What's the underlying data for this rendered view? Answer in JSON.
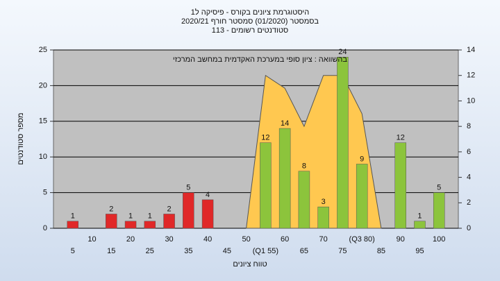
{
  "chart_data": {
    "type": "bar",
    "title": [
      "היסטוגרמת ציונים בקורס - פיסיקה ל1",
      "בסמסטר (01/2020) סמסטר חורף 2020/21",
      "סטודנטים רשומים - 113"
    ],
    "annotation": "בהשוואה : ציון סופי במערכת האקדמית במחשב המרכזי",
    "x_label": "טווח ציונים",
    "y_label": "מספר סטודנטים",
    "categories": [
      "5",
      "10",
      "15",
      "20",
      "25",
      "30",
      "35",
      "40",
      "45",
      "50",
      "(Q1 55)",
      "60",
      "65",
      "70",
      "75",
      "(Q3 80)",
      "85",
      "90",
      "95",
      "100"
    ],
    "values": [
      1,
      null,
      2,
      1,
      1,
      2,
      5,
      4,
      null,
      null,
      12,
      14,
      8,
      3,
      24,
      9,
      null,
      12,
      1,
      5
    ],
    "bar_colors": [
      "#e02828",
      "#e02828",
      "#e02828",
      "#e02828",
      "#e02828",
      "#e02828",
      "#e02828",
      "#e02828",
      "#e02828",
      "#e02828",
      "#8cc43c",
      "#8cc43c",
      "#8cc43c",
      "#8cc43c",
      "#8cc43c",
      "#8cc43c",
      "#8cc43c",
      "#8cc43c",
      "#8cc43c",
      "#8cc43c"
    ],
    "area": {
      "axis": "y2",
      "color": "#ffc850",
      "values": [
        null,
        null,
        null,
        null,
        null,
        null,
        null,
        null,
        null,
        0,
        12,
        11,
        8,
        12,
        12,
        9,
        0,
        null,
        null,
        null
      ]
    },
    "ylim": [
      0,
      25
    ],
    "yticks": [
      0,
      5,
      10,
      15,
      20,
      25
    ],
    "y2lim": [
      0,
      14
    ],
    "y2ticks": [
      0,
      2,
      4,
      6,
      8,
      10,
      12,
      14
    ],
    "grid": true
  }
}
